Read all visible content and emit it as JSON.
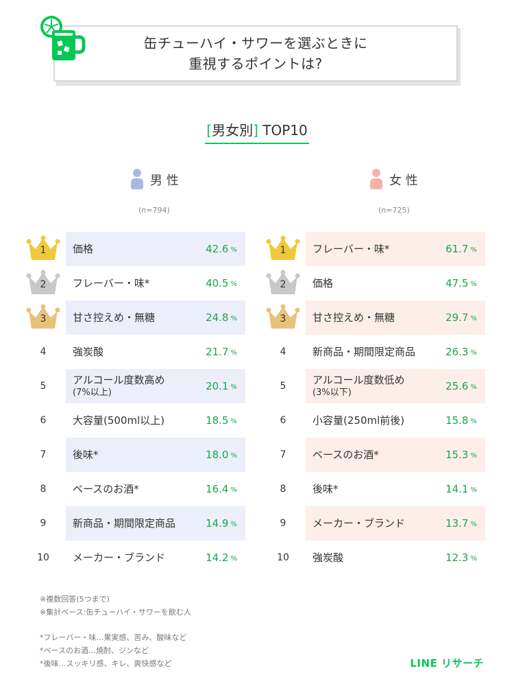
{
  "header": {
    "title_line1": "缶チューハイ・サワーを選ぶときに",
    "title_line2": "重視するポイントは?"
  },
  "subtitle": {
    "bracket_open": "[",
    "text": "男女別",
    "bracket_close": "]",
    "suffix": " TOP10"
  },
  "colors": {
    "accent": "#06c755",
    "value_text": "#1aa64a",
    "male_cell": "#eceff9",
    "female_cell": "#fdeeea",
    "male_icon": "#a9b8e6",
    "female_icon": "#f4b3a6",
    "gold": "#f0c93a",
    "silver": "#c8c8c8",
    "bronze": "#e8c27a"
  },
  "male": {
    "label": "男 性",
    "n": "(n=794)"
  },
  "female": {
    "label": "女 性",
    "n": "(n=725)"
  },
  "percent_unit": "%",
  "chart_data": [
    {
      "type": "table",
      "title": "男 性",
      "note": "(n=794)",
      "ranks": [
        "1",
        "2",
        "3",
        "4",
        "5",
        "6",
        "7",
        "8",
        "9",
        "10"
      ],
      "items": [
        {
          "label": "価格",
          "sub": "",
          "value": "42.6"
        },
        {
          "label": "フレーバー・味*",
          "sub": "",
          "value": "40.5"
        },
        {
          "label": "甘さ控えめ・無糖",
          "sub": "",
          "value": "24.8"
        },
        {
          "label": "強炭酸",
          "sub": "",
          "value": "21.7"
        },
        {
          "label": "アルコール度数高め",
          "sub": "(7%以上)",
          "value": "20.1"
        },
        {
          "label": "大容量(500ml以上)",
          "sub": "",
          "value": "18.5"
        },
        {
          "label": "後味*",
          "sub": "",
          "value": "18.0"
        },
        {
          "label": "ベースのお酒*",
          "sub": "",
          "value": "16.4"
        },
        {
          "label": "新商品・期間限定商品",
          "sub": "",
          "value": "14.9"
        },
        {
          "label": "メーカー・ブランド",
          "sub": "",
          "value": "14.2"
        }
      ]
    },
    {
      "type": "table",
      "title": "女 性",
      "note": "(n=725)",
      "ranks": [
        "1",
        "2",
        "3",
        "4",
        "5",
        "6",
        "7",
        "8",
        "9",
        "10"
      ],
      "items": [
        {
          "label": "フレーバー・味*",
          "sub": "",
          "value": "61.7"
        },
        {
          "label": "価格",
          "sub": "",
          "value": "47.5"
        },
        {
          "label": "甘さ控えめ・無糖",
          "sub": "",
          "value": "29.7"
        },
        {
          "label": "新商品・期間限定商品",
          "sub": "",
          "value": "26.3"
        },
        {
          "label": "アルコール度数低め",
          "sub": "(3%以下)",
          "value": "25.6"
        },
        {
          "label": "小容量(250ml前後)",
          "sub": "",
          "value": "15.8"
        },
        {
          "label": "ベースのお酒*",
          "sub": "",
          "value": "15.3"
        },
        {
          "label": "後味*",
          "sub": "",
          "value": "14.1"
        },
        {
          "label": "メーカー・ブランド",
          "sub": "",
          "value": "13.7"
        },
        {
          "label": "強炭酸",
          "sub": "",
          "value": "12.3"
        }
      ]
    }
  ],
  "notes": {
    "line1": "※複数回答(5つまで)",
    "line2": "※集計ベース:缶チューハイ・サワーを飲む人",
    "line3": "*フレーバー・味…果実感、苦み、酸味など",
    "line4": "*ベースのお酒…焼酎、ジンなど",
    "line5": "*後味…スッキリ感、キレ、爽快感など"
  },
  "brand": "LINE リサーチ",
  "icons": {
    "logo": "chuhai-glass-with-lime-icon",
    "male": "male-person-icon",
    "female": "female-person-icon",
    "crown": "crown-icon"
  }
}
